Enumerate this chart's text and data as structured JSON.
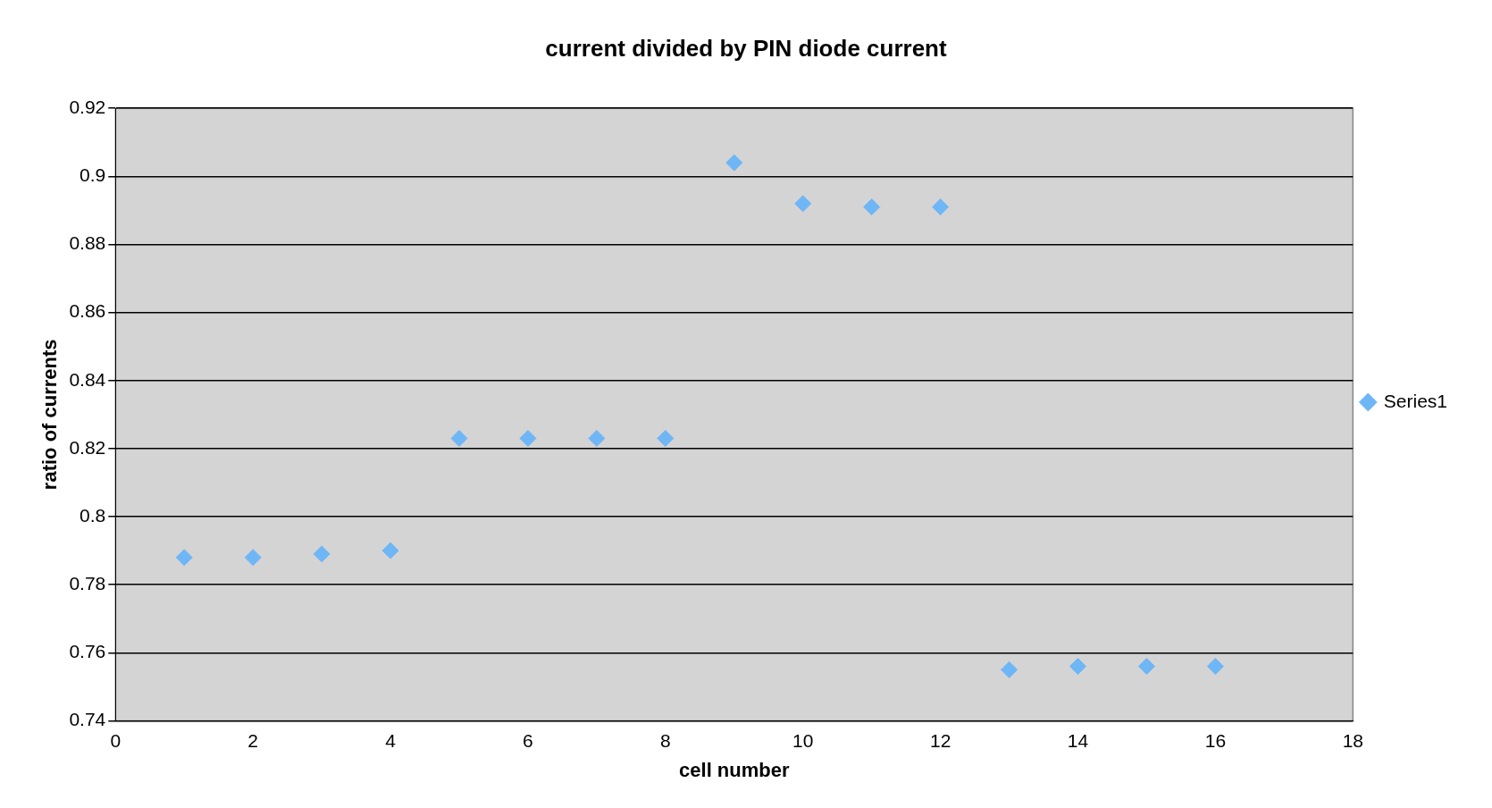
{
  "chart_data": {
    "type": "scatter",
    "title": "current divided by PIN diode current",
    "xlabel": "cell number",
    "ylabel": "ratio of currents",
    "x": [
      1,
      2,
      3,
      4,
      5,
      6,
      7,
      8,
      9,
      10,
      11,
      12,
      13,
      14,
      15,
      16
    ],
    "series": [
      {
        "name": "Series1",
        "color": "#6fb6f7",
        "values": [
          0.788,
          0.788,
          0.789,
          0.79,
          0.823,
          0.823,
          0.823,
          0.823,
          0.904,
          0.892,
          0.891,
          0.891,
          0.755,
          0.756,
          0.756,
          0.756
        ]
      }
    ],
    "xlim": [
      0,
      18
    ],
    "xticks": [
      0,
      2,
      4,
      6,
      8,
      10,
      12,
      14,
      16,
      18
    ],
    "ylim": [
      0.74,
      0.92
    ],
    "yticks": [
      0.74,
      0.76,
      0.78,
      0.8,
      0.82,
      0.84,
      0.86,
      0.88,
      0.9,
      0.92
    ],
    "grid": "y",
    "legend": "right",
    "marker": "diamond"
  }
}
